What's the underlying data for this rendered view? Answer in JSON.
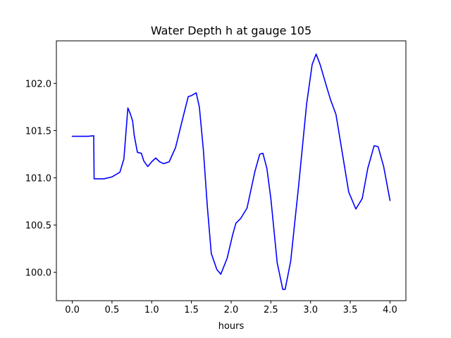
{
  "chart_data": {
    "type": "line",
    "title": "Water Depth h at gauge 105",
    "xlabel": "hours",
    "ylabel": "",
    "xlim": [
      -0.2,
      4.2
    ],
    "ylim": [
      99.7,
      102.45
    ],
    "x_ticks": [
      0.0,
      0.5,
      1.0,
      1.5,
      2.0,
      2.5,
      3.0,
      3.5,
      4.0
    ],
    "x_tick_labels": [
      "0.0",
      "0.5",
      "1.0",
      "1.5",
      "2.0",
      "2.5",
      "3.0",
      "3.5",
      "4.0"
    ],
    "y_ticks": [
      100.0,
      100.5,
      101.0,
      101.5,
      102.0
    ],
    "y_tick_labels": [
      "100.0",
      "100.5",
      "101.0",
      "101.5",
      "102.0"
    ],
    "grid": false,
    "series": [
      {
        "color": "#0000ff",
        "points": [
          [
            0.0,
            101.44
          ],
          [
            0.2,
            101.44
          ],
          [
            0.27,
            101.445
          ],
          [
            0.275,
            100.99
          ],
          [
            0.4,
            100.99
          ],
          [
            0.5,
            101.01
          ],
          [
            0.6,
            101.06
          ],
          [
            0.65,
            101.2
          ],
          [
            0.7,
            101.74
          ],
          [
            0.73,
            101.68
          ],
          [
            0.76,
            101.6
          ],
          [
            0.78,
            101.45
          ],
          [
            0.82,
            101.27
          ],
          [
            0.87,
            101.26
          ],
          [
            0.9,
            101.18
          ],
          [
            0.95,
            101.12
          ],
          [
            1.0,
            101.17
          ],
          [
            1.05,
            101.21
          ],
          [
            1.1,
            101.17
          ],
          [
            1.15,
            101.15
          ],
          [
            1.22,
            101.17
          ],
          [
            1.3,
            101.32
          ],
          [
            1.4,
            101.66
          ],
          [
            1.46,
            101.86
          ],
          [
            1.5,
            101.87
          ],
          [
            1.56,
            101.9
          ],
          [
            1.6,
            101.75
          ],
          [
            1.65,
            101.3
          ],
          [
            1.7,
            100.7
          ],
          [
            1.75,
            100.2
          ],
          [
            1.82,
            100.03
          ],
          [
            1.87,
            99.98
          ],
          [
            1.95,
            100.15
          ],
          [
            2.02,
            100.4
          ],
          [
            2.06,
            100.52
          ],
          [
            2.12,
            100.57
          ],
          [
            2.2,
            100.68
          ],
          [
            2.3,
            101.07
          ],
          [
            2.36,
            101.25
          ],
          [
            2.4,
            101.26
          ],
          [
            2.45,
            101.1
          ],
          [
            2.5,
            100.78
          ],
          [
            2.58,
            100.1
          ],
          [
            2.65,
            99.82
          ],
          [
            2.68,
            99.82
          ],
          [
            2.75,
            100.12
          ],
          [
            2.85,
            100.92
          ],
          [
            2.95,
            101.78
          ],
          [
            3.02,
            102.2
          ],
          [
            3.07,
            102.31
          ],
          [
            3.12,
            102.2
          ],
          [
            3.2,
            101.97
          ],
          [
            3.25,
            101.83
          ],
          [
            3.32,
            101.67
          ],
          [
            3.4,
            101.26
          ],
          [
            3.48,
            100.85
          ],
          [
            3.57,
            100.67
          ],
          [
            3.65,
            100.78
          ],
          [
            3.72,
            101.1
          ],
          [
            3.8,
            101.34
          ],
          [
            3.85,
            101.33
          ],
          [
            3.92,
            101.12
          ],
          [
            4.0,
            100.76
          ]
        ]
      }
    ]
  }
}
